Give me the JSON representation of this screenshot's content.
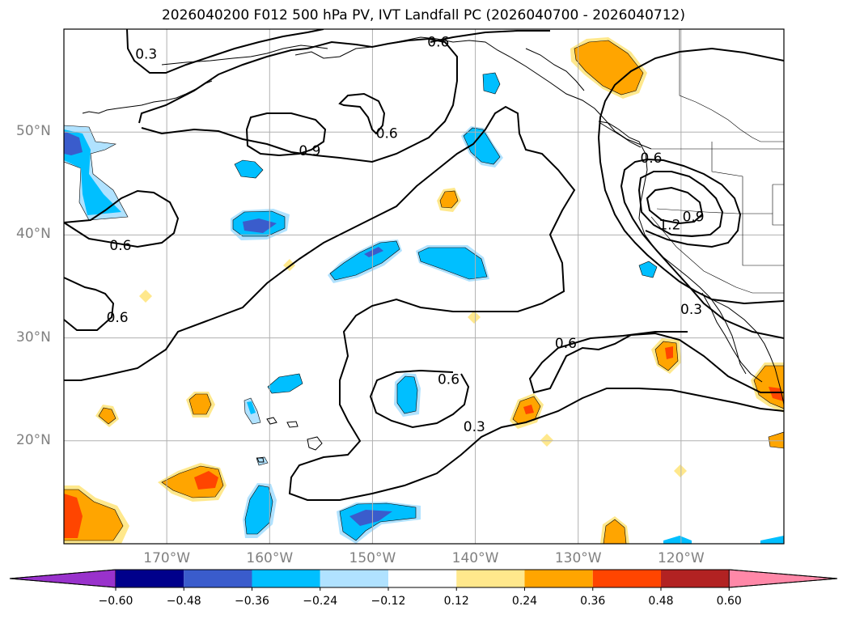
{
  "title": "2026040200 F012 500 hPa PV, IVT Landfall PC (2026040700 - 2026040712)",
  "map": {
    "lon_range": [
      -180,
      -110
    ],
    "lat_range": [
      10,
      60
    ],
    "lat_ticks": [
      {
        "lat": 50,
        "label": "50°N"
      },
      {
        "lat": 40,
        "label": "40°N"
      },
      {
        "lat": 30,
        "label": "30°N"
      },
      {
        "lat": 20,
        "label": "20°N"
      }
    ],
    "lon_ticks": [
      {
        "lon": -170,
        "label": "170°W"
      },
      {
        "lon": -160,
        "label": "160°W"
      },
      {
        "lon": -150,
        "label": "150°W"
      },
      {
        "lon": -140,
        "label": "140°W"
      },
      {
        "lon": -130,
        "label": "130°W"
      },
      {
        "lon": -120,
        "label": "120°W"
      }
    ],
    "gridlines": true,
    "contour_labels": [
      {
        "text": "0.3",
        "lon": -172,
        "lat": 57.6
      },
      {
        "text": "0.6",
        "lon": -143.6,
        "lat": 58.8
      },
      {
        "text": "0.6",
        "lon": -148.6,
        "lat": 49.9
      },
      {
        "text": "0.9",
        "lon": -156.1,
        "lat": 48.2
      },
      {
        "text": "0.6",
        "lon": -174.5,
        "lat": 39
      },
      {
        "text": "0.6",
        "lon": -174.8,
        "lat": 32
      },
      {
        "text": "0.6",
        "lon": -122.9,
        "lat": 47.5
      },
      {
        "text": "1.2",
        "lon": -121.1,
        "lat": 41
      },
      {
        "text": "0.9",
        "lon": -118.8,
        "lat": 41.8
      },
      {
        "text": "0.6",
        "lon": -142.6,
        "lat": 26
      },
      {
        "text": "0.3",
        "lon": -140.1,
        "lat": 21.4
      },
      {
        "text": "0.6",
        "lon": -131.2,
        "lat": 29.5
      },
      {
        "text": "0.3",
        "lon": -119,
        "lat": 32.8
      }
    ]
  },
  "colorbar": {
    "colors": [
      "#9932cc",
      "#00008b",
      "#3a5ccc",
      "#00bfff",
      "#b0e2ff",
      "#ffffff",
      "#ffe88c",
      "#ffa500",
      "#ff4500",
      "#b22222",
      "#ff88a8"
    ],
    "tick_labels": [
      "−0.60",
      "−0.48",
      "−0.36",
      "−0.24",
      "−0.12",
      "0.12",
      "0.24",
      "0.36",
      "0.48",
      "0.60"
    ]
  }
}
